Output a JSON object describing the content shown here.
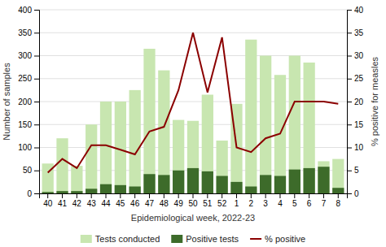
{
  "chart_data": {
    "type": "bar",
    "xlabel": "Epidemiological week, 2022-23",
    "ylabel": "Number of samples",
    "y2label": "% positive for measles",
    "categories": [
      "40",
      "41",
      "42",
      "43",
      "44",
      "45",
      "46",
      "47",
      "48",
      "49",
      "50",
      "51",
      "52",
      "1",
      "2",
      "3",
      "4",
      "5",
      "6",
      "7",
      "8"
    ],
    "series": [
      {
        "name": "Tests conducted",
        "type": "bar",
        "color": "#c8e6b0",
        "values": [
          65,
          120,
          60,
          150,
          200,
          200,
          225,
          315,
          268,
          160,
          158,
          215,
          115,
          195,
          335,
          300,
          258,
          300,
          285,
          70,
          75
        ]
      },
      {
        "name": "Positive tests",
        "type": "bar",
        "color": "#3d6b2a",
        "values": [
          3,
          5,
          5,
          10,
          20,
          18,
          15,
          42,
          40,
          50,
          55,
          48,
          38,
          25,
          15,
          40,
          38,
          52,
          55,
          58,
          12
        ]
      },
      {
        "name": "% positive",
        "type": "line",
        "axis": "y2",
        "color": "#8b0000",
        "values": [
          4.5,
          7.5,
          5.5,
          10.5,
          10.5,
          9.5,
          8.5,
          13.5,
          14.5,
          22.5,
          35,
          22,
          34,
          10,
          9,
          12,
          13,
          20,
          20,
          20,
          19.5
        ]
      }
    ],
    "ylim": [
      0,
      400
    ],
    "yticks": [
      0,
      50,
      100,
      150,
      200,
      250,
      300,
      350,
      400
    ],
    "y2lim": [
      0,
      40
    ],
    "y2ticks": [
      0,
      5,
      10,
      15,
      20,
      25,
      30,
      35,
      40
    ],
    "stacked": false,
    "grid": true,
    "legend": "bottom"
  }
}
